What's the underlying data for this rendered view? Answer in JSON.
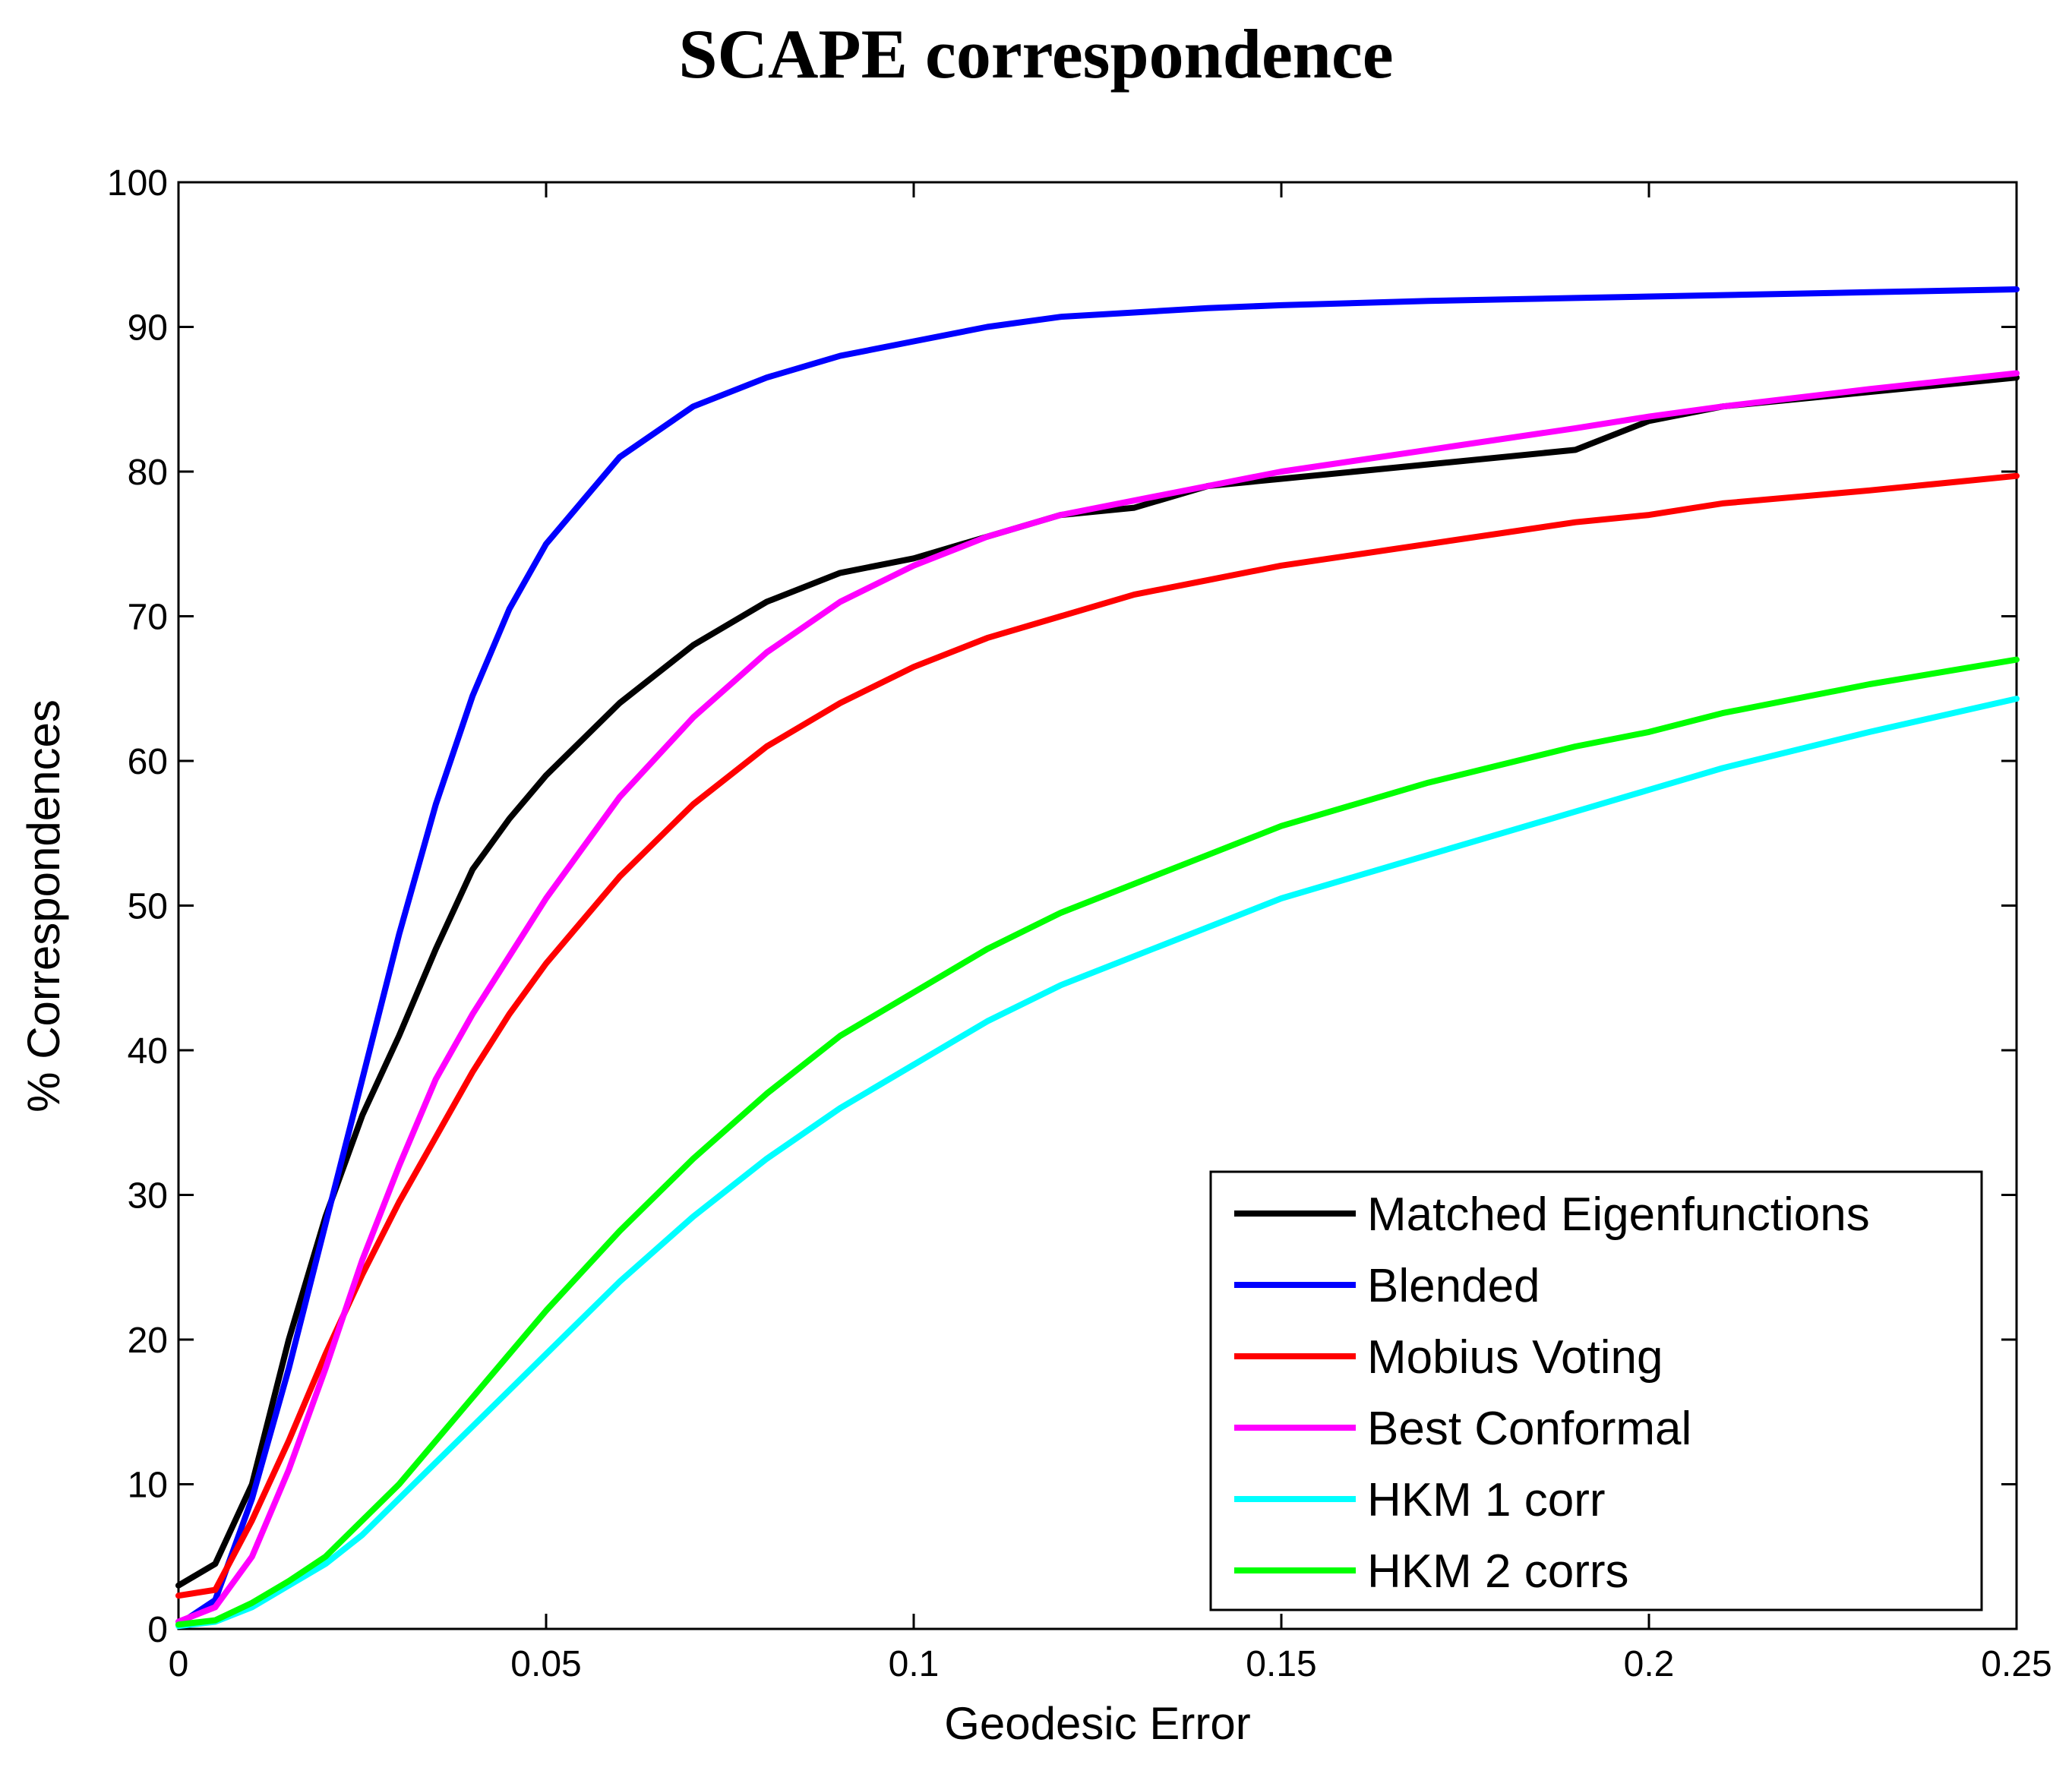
{
  "chart_data": {
    "type": "line",
    "title": "SCAPE correspondence",
    "xlabel": "Geodesic Error",
    "ylabel": "% Correspondences",
    "xlim": [
      0,
      0.25
    ],
    "ylim": [
      0,
      100
    ],
    "grid": false,
    "legend_position": "bottom-right",
    "x_ticks": [
      0,
      0.05,
      0.1,
      0.15,
      0.2,
      0.25
    ],
    "x_tick_labels": [
      "0",
      "0.05",
      "0.1",
      "0.15",
      "0.2",
      "0.25"
    ],
    "y_ticks": [
      0,
      10,
      20,
      30,
      40,
      50,
      60,
      70,
      80,
      90,
      100
    ],
    "y_tick_labels": [
      "0",
      "10",
      "20",
      "30",
      "40",
      "50",
      "60",
      "70",
      "80",
      "90",
      "100"
    ],
    "x": [
      0,
      0.005,
      0.01,
      0.015,
      0.02,
      0.025,
      0.03,
      0.035,
      0.04,
      0.045,
      0.05,
      0.06,
      0.07,
      0.08,
      0.09,
      0.1,
      0.11,
      0.12,
      0.13,
      0.14,
      0.15,
      0.17,
      0.19,
      0.2,
      0.21,
      0.23,
      0.25
    ],
    "series": [
      {
        "name": "Matched Eigenfunctions",
        "color": "#000000",
        "values": [
          3.0,
          4.5,
          10.0,
          20.0,
          28.5,
          35.5,
          41.0,
          47.0,
          52.5,
          56.0,
          59.0,
          64.0,
          68.0,
          71.0,
          73.0,
          74.0,
          75.5,
          77.0,
          77.5,
          79.0,
          79.5,
          80.5,
          81.5,
          83.5,
          84.5,
          85.5,
          86.5
        ]
      },
      {
        "name": "Blended",
        "color": "#0000ff",
        "values": [
          0.3,
          2.0,
          9.0,
          18.0,
          28.0,
          38.0,
          48.0,
          57.0,
          64.5,
          70.5,
          75.0,
          81.0,
          84.5,
          86.5,
          88.0,
          89.0,
          90.0,
          90.7,
          91.0,
          91.3,
          91.5,
          91.8,
          92.0,
          92.1,
          92.2,
          92.4,
          92.6
        ]
      },
      {
        "name": "Mobius Voting",
        "color": "#ff0000",
        "values": [
          2.3,
          2.7,
          7.5,
          13.0,
          19.0,
          24.5,
          29.5,
          34.0,
          38.5,
          42.5,
          46.0,
          52.0,
          57.0,
          61.0,
          64.0,
          66.5,
          68.5,
          70.0,
          71.5,
          72.5,
          73.5,
          75.0,
          76.5,
          77.0,
          77.8,
          78.7,
          79.7
        ]
      },
      {
        "name": "Best Conformal",
        "color": "#ff00ff",
        "values": [
          0.5,
          1.5,
          5.0,
          11.0,
          18.0,
          25.5,
          32.0,
          38.0,
          42.5,
          46.5,
          50.5,
          57.5,
          63.0,
          67.5,
          71.0,
          73.5,
          75.5,
          77.0,
          78.0,
          79.0,
          80.0,
          81.5,
          83.0,
          83.8,
          84.5,
          85.7,
          86.8
        ]
      },
      {
        "name": "HKM 1 corr",
        "color": "#00ffff",
        "values": [
          0.2,
          0.5,
          1.5,
          3.0,
          4.5,
          6.5,
          9.0,
          11.5,
          14.0,
          16.5,
          19.0,
          24.0,
          28.5,
          32.5,
          36.0,
          39.0,
          42.0,
          44.5,
          46.5,
          48.5,
          50.5,
          53.5,
          56.5,
          58.0,
          59.5,
          62.0,
          64.3
        ]
      },
      {
        "name": "HKM 2 corrs",
        "color": "#00ff00",
        "values": [
          0.3,
          0.6,
          1.8,
          3.3,
          5.0,
          7.5,
          10.0,
          13.0,
          16.0,
          19.0,
          22.0,
          27.5,
          32.5,
          37.0,
          41.0,
          44.0,
          47.0,
          49.5,
          51.5,
          53.5,
          55.5,
          58.5,
          61.0,
          62.0,
          63.3,
          65.3,
          67.0
        ]
      }
    ]
  }
}
